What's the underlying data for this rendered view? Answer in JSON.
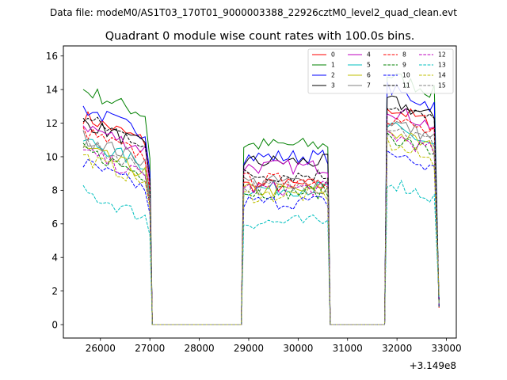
{
  "figure": {
    "suptitle": "Data file: modeM0/AS1T03_170T01_9000003388_22926cztM0_level2_quad_clean.evt"
  },
  "chart_data": {
    "type": "line",
    "title": "Quadrant 0 module wise count rates with 100.0s bins.",
    "xlabel": "",
    "ylabel": "",
    "x_offset_label": "+3.149e8",
    "xlim": [
      25250,
      33200
    ],
    "ylim": [
      -0.8,
      16.6
    ],
    "x_ticks": [
      26000,
      27000,
      28000,
      29000,
      30000,
      31000,
      32000,
      33000
    ],
    "y_ticks": [
      0,
      2,
      4,
      6,
      8,
      10,
      12,
      14,
      16
    ],
    "segments": [
      {
        "start": 25650,
        "end": 27000
      },
      {
        "start": 28900,
        "end": 30600
      },
      {
        "start": 31800,
        "end": 32850
      }
    ],
    "gap_ends": [
      27050,
      28850,
      30650,
      31750
    ],
    "series": [
      {
        "name": "0",
        "color": "#ff0000",
        "dash": "solid",
        "levels": [
          11.6,
          8.3,
          12.4
        ]
      },
      {
        "name": "1",
        "color": "#008000",
        "dash": "solid",
        "levels": [
          13.2,
          10.7,
          14.3
        ]
      },
      {
        "name": "2",
        "color": "#0000ff",
        "dash": "solid",
        "levels": [
          12.1,
          10.0,
          13.5
        ]
      },
      {
        "name": "3",
        "color": "#000000",
        "dash": "solid",
        "levels": [
          11.3,
          9.7,
          12.8
        ]
      },
      {
        "name": "4",
        "color": "#bf00bf",
        "dash": "solid",
        "levels": [
          11.1,
          9.4,
          12.3
        ]
      },
      {
        "name": "5",
        "color": "#00bfbf",
        "dash": "solid",
        "levels": [
          10.2,
          8.1,
          11.2
        ]
      },
      {
        "name": "6",
        "color": "#bfbf00",
        "dash": "solid",
        "levels": [
          9.7,
          8.0,
          11.0
        ]
      },
      {
        "name": "7",
        "color": "#808080",
        "dash": "solid",
        "levels": [
          10.4,
          8.5,
          11.6
        ]
      },
      {
        "name": "8",
        "color": "#ff0000",
        "dash": "dashed",
        "levels": [
          10.7,
          8.6,
          11.8
        ]
      },
      {
        "name": "9",
        "color": "#008000",
        "dash": "dashed",
        "levels": [
          9.6,
          7.9,
          10.7
        ]
      },
      {
        "name": "10",
        "color": "#0000ff",
        "dash": "dashed",
        "levels": [
          8.8,
          7.3,
          9.7
        ]
      },
      {
        "name": "11",
        "color": "#000000",
        "dash": "dashed",
        "levels": [
          11.5,
          8.9,
          12.6
        ]
      },
      {
        "name": "12",
        "color": "#bf00bf",
        "dash": "dashed",
        "levels": [
          9.5,
          8.1,
          10.8
        ]
      },
      {
        "name": "13",
        "color": "#00bfbf",
        "dash": "dashed",
        "levels": [
          7.1,
          6.1,
          8.0
        ]
      },
      {
        "name": "14",
        "color": "#bfbf00",
        "dash": "dashed",
        "levels": [
          9.2,
          7.7,
          10.2
        ]
      },
      {
        "name": "15",
        "color": "#808080",
        "dash": "dashed",
        "levels": [
          10.0,
          8.2,
          11.3
        ]
      }
    ],
    "legend": {
      "placement": "top-right",
      "columns": 4
    }
  }
}
